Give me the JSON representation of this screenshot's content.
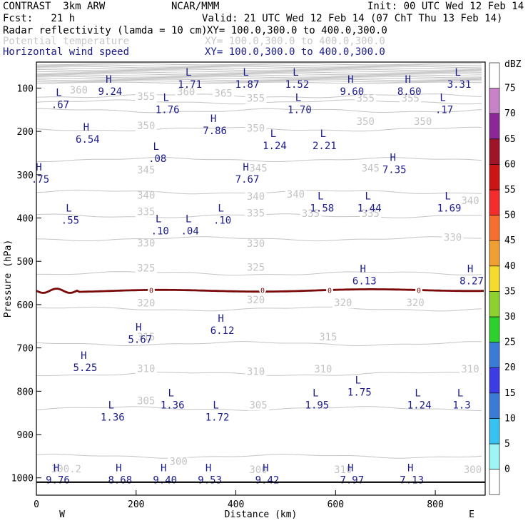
{
  "header": {
    "model": "CONTRAST  3km ARW",
    "org": "NCAR/MMM",
    "init": "Init: 00 UTC Wed 12 Feb 14",
    "fcst": "Fcst:   21 h",
    "valid": "Valid: 21 UTC Wed 12 Feb 14 (07 ChT Thu 13 Feb 14)",
    "field1": "Radar reflectivity (lamda = 10 cm)",
    "xy1": "XY= 100.0,300.0 to 400.0,300.0",
    "field2": "Potential temperature",
    "xy2": "XY= 100.0,300.0 to 400.0,300.0",
    "field3": "Horizontal wind speed",
    "xy3": "XY= 100.0,300.0 to 400.0,300.0"
  },
  "colors": {
    "theta": "#c4c4c4",
    "wind_label": "#1a1a8c",
    "freezing": "#7a0a0a"
  },
  "chart_data": {
    "type": "cross-section",
    "xlabel": "Distance (km)",
    "ylabel": "Pressure (hPa)",
    "xlim": [
      0,
      900
    ],
    "ylim": [
      1040,
      40
    ],
    "x_ticks": [
      0,
      200,
      400,
      600,
      800
    ],
    "y_ticks": [
      100,
      200,
      300,
      400,
      500,
      600,
      700,
      800,
      900,
      1000
    ],
    "direction_left": "W",
    "direction_right": "E",
    "colorbar": {
      "unit": "dBZ",
      "levels": [
        0,
        5,
        10,
        15,
        20,
        25,
        30,
        35,
        40,
        45,
        50,
        55,
        60,
        65,
        70,
        75
      ],
      "colors": [
        "#ffffff",
        "#9ef5f5",
        "#37c3f2",
        "#3a7bd5",
        "#3c3ce6",
        "#3a7bd5",
        "#2cd12c",
        "#8fd12c",
        "#f5dc2c",
        "#f0a030",
        "#f57030",
        "#f52c2c",
        "#cd1414",
        "#a01428",
        "#8c2896",
        "#c882c8",
        "#ffffff"
      ]
    },
    "theta_contours": [
      {
        "value": 365,
        "p": 118
      },
      {
        "value": 360,
        "p": 132
      },
      {
        "value": 355,
        "p": 152
      },
      {
        "value": 350,
        "p": 195
      },
      {
        "value": 345,
        "p": 265
      },
      {
        "value": 340,
        "p": 340
      },
      {
        "value": 335,
        "p": 395
      },
      {
        "value": 330,
        "p": 448
      },
      {
        "value": 325,
        "p": 528
      },
      {
        "value": 320,
        "p": 610
      },
      {
        "value": 315,
        "p": 690
      },
      {
        "value": 310,
        "p": 760
      },
      {
        "value": 305,
        "p": 840
      },
      {
        "value": 300,
        "p": 950
      }
    ],
    "theta_label_positions": [
      {
        "text": "365",
        "x": 375,
        "p": 118
      },
      {
        "text": "360",
        "x": 300,
        "p": 115
      },
      {
        "text": "360",
        "x": 85,
        "p": 111
      },
      {
        "text": "355",
        "x": 220,
        "p": 126
      },
      {
        "text": "355",
        "x": 440,
        "p": 130
      },
      {
        "text": "355",
        "x": 660,
        "p": 130
      },
      {
        "text": "355",
        "x": 750,
        "p": 130
      },
      {
        "text": "350",
        "x": 220,
        "p": 193
      },
      {
        "text": "350",
        "x": 440,
        "p": 199
      },
      {
        "text": "350",
        "x": 660,
        "p": 183
      },
      {
        "text": "350",
        "x": 775,
        "p": 183
      },
      {
        "text": "345",
        "x": 220,
        "p": 295
      },
      {
        "text": "345",
        "x": 445,
        "p": 291
      },
      {
        "text": "345",
        "x": 670,
        "p": 291
      },
      {
        "text": "340",
        "x": 220,
        "p": 354
      },
      {
        "text": "340",
        "x": 440,
        "p": 356
      },
      {
        "text": "340",
        "x": 520,
        "p": 351
      },
      {
        "text": "340",
        "x": 870,
        "p": 366
      },
      {
        "text": "335",
        "x": 220,
        "p": 392
      },
      {
        "text": "335",
        "x": 440,
        "p": 395
      },
      {
        "text": "335",
        "x": 550,
        "p": 396
      },
      {
        "text": "335",
        "x": 670,
        "p": 396
      },
      {
        "text": "330",
        "x": 220,
        "p": 464
      },
      {
        "text": "330",
        "x": 440,
        "p": 465
      },
      {
        "text": "330",
        "x": 835,
        "p": 451
      },
      {
        "text": "325",
        "x": 220,
        "p": 522
      },
      {
        "text": "325",
        "x": 440,
        "p": 520
      },
      {
        "text": "320",
        "x": 220,
        "p": 603
      },
      {
        "text": "320",
        "x": 440,
        "p": 595
      },
      {
        "text": "320",
        "x": 615,
        "p": 602
      },
      {
        "text": "320",
        "x": 760,
        "p": 602
      },
      {
        "text": "315",
        "x": 220,
        "p": 681
      },
      {
        "text": "315",
        "x": 585,
        "p": 681
      },
      {
        "text": "310",
        "x": 220,
        "p": 754
      },
      {
        "text": "310",
        "x": 440,
        "p": 761
      },
      {
        "text": "310",
        "x": 575,
        "p": 755
      },
      {
        "text": "310",
        "x": 870,
        "p": 755
      },
      {
        "text": "305",
        "x": 220,
        "p": 828
      },
      {
        "text": "305",
        "x": 445,
        "p": 838
      },
      {
        "text": "300",
        "x": 285,
        "p": 968
      },
      {
        "text": "300",
        "x": 445,
        "p": 987
      },
      {
        "text": "310",
        "x": 615,
        "p": 987
      },
      {
        "text": "300",
        "x": 875,
        "p": 987
      },
      {
        "text": "300.2",
        "x": 60,
        "p": 986
      }
    ],
    "freezing_level": {
      "value": "0",
      "p": 568
    },
    "wind_speed_extrema": [
      {
        "type": "L",
        "value": "1.71",
        "x": 305,
        "p": 71
      },
      {
        "type": "L",
        "value": "1.87",
        "x": 420,
        "p": 71
      },
      {
        "type": "L",
        "value": "1.52",
        "x": 520,
        "p": 71
      },
      {
        "type": "L",
        "value": "3.31",
        "x": 845,
        "p": 71
      },
      {
        "type": "H",
        "value": "9.24",
        "x": 145,
        "p": 88
      },
      {
        "type": "H",
        "value": "9.60",
        "x": 630,
        "p": 88
      },
      {
        "type": "H",
        "value": "8.60",
        "x": 745,
        "p": 88
      },
      {
        "type": "L",
        "value": ".67",
        "x": 45,
        "p": 118
      },
      {
        "type": "L",
        "value": "1.76",
        "x": 260,
        "p": 130
      },
      {
        "type": "L",
        "value": "1.70",
        "x": 525,
        "p": 130
      },
      {
        "type": "L",
        "value": ".17",
        "x": 815,
        "p": 130
      },
      {
        "type": "H",
        "value": "7.86",
        "x": 355,
        "p": 178
      },
      {
        "type": "H",
        "value": "6.54",
        "x": 100,
        "p": 198
      },
      {
        "type": "L",
        "value": "1.24",
        "x": 475,
        "p": 213
      },
      {
        "type": "L",
        "value": "2.21",
        "x": 575,
        "p": 213
      },
      {
        "type": "L",
        "value": ".08",
        "x": 240,
        "p": 243
      },
      {
        "type": "H",
        "value": "7.35",
        "x": 715,
        "p": 268
      },
      {
        "type": "H",
        "value": ".75",
        "x": 5,
        "p": 290
      },
      {
        "type": "H",
        "value": "7.67",
        "x": 420,
        "p": 290
      },
      {
        "type": "L",
        "value": "1.58",
        "x": 570,
        "p": 357
      },
      {
        "type": "L",
        "value": "1.44",
        "x": 665,
        "p": 357
      },
      {
        "type": "L",
        "value": "1.69",
        "x": 825,
        "p": 357
      },
      {
        "type": "L",
        "value": ".55",
        "x": 65,
        "p": 385
      },
      {
        "type": "L",
        "value": ".10",
        "x": 370,
        "p": 385
      },
      {
        "type": "L",
        "value": ".10",
        "x": 245,
        "p": 410
      },
      {
        "type": "L",
        "value": ".04",
        "x": 305,
        "p": 410
      },
      {
        "type": "H",
        "value": "6.13",
        "x": 655,
        "p": 525
      },
      {
        "type": "H",
        "value": "8.27",
        "x": 870,
        "p": 525
      },
      {
        "type": "H",
        "value": "6.12",
        "x": 370,
        "p": 640
      },
      {
        "type": "H",
        "value": "5.67",
        "x": 205,
        "p": 660
      },
      {
        "type": "H",
        "value": "5.25",
        "x": 95,
        "p": 725
      },
      {
        "type": "L",
        "value": "1.75",
        "x": 645,
        "p": 782
      },
      {
        "type": "L",
        "value": "1.36",
        "x": 270,
        "p": 812
      },
      {
        "type": "L",
        "value": "1.95",
        "x": 560,
        "p": 812
      },
      {
        "type": "L",
        "value": "1.24",
        "x": 765,
        "p": 812
      },
      {
        "type": "L",
        "value": "1.3",
        "x": 850,
        "p": 812
      },
      {
        "type": "L",
        "value": "1.36",
        "x": 150,
        "p": 840
      },
      {
        "type": "L",
        "value": "1.72",
        "x": 360,
        "p": 840
      },
      {
        "type": "H",
        "value": "9.76",
        "x": 40,
        "p": 985
      },
      {
        "type": "H",
        "value": "8.68",
        "x": 165,
        "p": 985
      },
      {
        "type": "H",
        "value": "9.40",
        "x": 255,
        "p": 985
      },
      {
        "type": "H",
        "value": "9.53",
        "x": 345,
        "p": 985
      },
      {
        "type": "H",
        "value": "9.42",
        "x": 460,
        "p": 985
      },
      {
        "type": "H",
        "value": "7.97",
        "x": 630,
        "p": 985
      },
      {
        "type": "H",
        "value": "7.13",
        "x": 750,
        "p": 985
      }
    ]
  }
}
